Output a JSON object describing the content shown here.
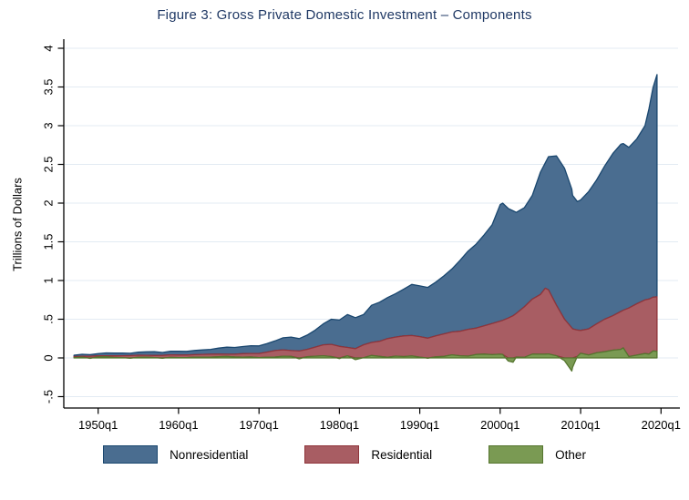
{
  "figure": {
    "title": "Figure 3: Gross Private Domestic Investment – Components",
    "title_color": "#1f3864"
  },
  "chart_data": {
    "type": "area",
    "stacked": true,
    "stack_order_bottom_to_top": [
      "Other",
      "Residential",
      "Nonresidential"
    ],
    "title": "Figure 3: Gross Private Domestic Investment – Components",
    "xlabel": "",
    "ylabel": "Trillions of Dollars",
    "ylim": [
      -0.5,
      4
    ],
    "xlim": [
      1946.97,
      2019.5
    ],
    "grid": true,
    "grid_color": "#e3ebf3",
    "legend_position": "bottom",
    "x_ticks": {
      "values": [
        1950,
        1960,
        1970,
        1980,
        1990,
        2000,
        2010,
        2020
      ],
      "labels": [
        "1950q1",
        "1960q1",
        "1970q1",
        "1980q1",
        "1990q1",
        "2000q1",
        "2010q1",
        "2020q1"
      ]
    },
    "y_ticks": {
      "values": [
        -0.5,
        0,
        0.5,
        1,
        1.5,
        2,
        2.5,
        3,
        3.5,
        4
      ],
      "labels": [
        "-.5",
        "0",
        ".5",
        "1",
        "1.5",
        "2",
        "2.5",
        "3",
        "3.5",
        "4"
      ]
    },
    "x": [
      1947,
      1948,
      1949,
      1950,
      1951,
      1952,
      1953,
      1954,
      1955,
      1956,
      1957,
      1958,
      1959,
      1960,
      1961,
      1962,
      1963,
      1964,
      1965,
      1966,
      1967,
      1968,
      1969,
      1970,
      1971,
      1972,
      1973,
      1974,
      1975,
      1976,
      1977,
      1978,
      1979,
      1980,
      1981,
      1982,
      1983,
      1984,
      1985,
      1986,
      1987,
      1988,
      1989,
      1990,
      1991,
      1992,
      1993,
      1994,
      1995,
      1996,
      1997,
      1998,
      1999,
      2000,
      2000.3,
      2001,
      2001.6,
      2002,
      2003,
      2004,
      2005,
      2005.6,
      2006,
      2007,
      2008,
      2008.9,
      2009,
      2009.6,
      2010,
      2011,
      2012,
      2013,
      2014,
      2015,
      2015.3,
      2016,
      2017,
      2018,
      2018.5,
      2019,
      2019.5
    ],
    "series": [
      {
        "name": "Nonresidential",
        "fill": "#4a6d90",
        "stroke": "#1a476f",
        "values": [
          0.017,
          0.025,
          0.02,
          0.027,
          0.037,
          0.035,
          0.036,
          0.03,
          0.039,
          0.045,
          0.048,
          0.038,
          0.046,
          0.048,
          0.047,
          0.054,
          0.057,
          0.063,
          0.077,
          0.091,
          0.087,
          0.092,
          0.1,
          0.097,
          0.11,
          0.125,
          0.155,
          0.175,
          0.16,
          0.185,
          0.22,
          0.27,
          0.325,
          0.34,
          0.425,
          0.4,
          0.39,
          0.48,
          0.505,
          0.53,
          0.56,
          0.605,
          0.66,
          0.655,
          0.655,
          0.695,
          0.75,
          0.815,
          0.915,
          1.01,
          1.085,
          1.175,
          1.275,
          1.505,
          1.515,
          1.415,
          1.355,
          1.305,
          1.28,
          1.34,
          1.58,
          1.62,
          1.72,
          1.93,
          1.95,
          1.79,
          1.725,
          1.66,
          1.685,
          1.775,
          1.86,
          1.98,
          2.095,
          2.16,
          2.155,
          2.075,
          2.13,
          2.25,
          2.46,
          2.705,
          2.87
        ]
      },
      {
        "name": "Residential",
        "fill": "#a85d63",
        "stroke": "#90353b",
        "values": [
          0.014,
          0.012,
          0.022,
          0.015,
          0.012,
          0.021,
          0.025,
          0.03,
          0.027,
          0.024,
          0.029,
          0.033,
          0.033,
          0.033,
          0.035,
          0.032,
          0.037,
          0.038,
          0.034,
          0.028,
          0.035,
          0.045,
          0.045,
          0.054,
          0.065,
          0.083,
          0.083,
          0.075,
          0.09,
          0.094,
          0.118,
          0.142,
          0.157,
          0.15,
          0.107,
          0.12,
          0.168,
          0.168,
          0.195,
          0.242,
          0.246,
          0.267,
          0.264,
          0.265,
          0.255,
          0.271,
          0.29,
          0.295,
          0.317,
          0.346,
          0.34,
          0.365,
          0.403,
          0.427,
          0.44,
          0.515,
          0.545,
          0.563,
          0.652,
          0.71,
          0.772,
          0.85,
          0.828,
          0.652,
          0.5,
          0.39,
          0.375,
          0.34,
          0.295,
          0.337,
          0.374,
          0.42,
          0.445,
          0.49,
          0.485,
          0.627,
          0.664,
          0.694,
          0.71,
          0.695,
          0.705
        ]
      },
      {
        "name": "Other",
        "fill": "#7a9a53",
        "stroke": "#55752f",
        "values": [
          0.004,
          0.01,
          -0.006,
          0.013,
          0.016,
          0.006,
          0.003,
          -0.003,
          0.008,
          0.01,
          0.003,
          -0.004,
          0.007,
          0.005,
          0.003,
          0.01,
          0.009,
          0.01,
          0.016,
          0.02,
          0.013,
          0.01,
          0.013,
          0.004,
          0.01,
          0.012,
          0.022,
          0.02,
          -0.012,
          0.016,
          0.022,
          0.028,
          0.018,
          -0.008,
          0.028,
          -0.022,
          0.002,
          0.032,
          0.02,
          0.008,
          0.024,
          0.018,
          0.026,
          0.01,
          -0.004,
          0.014,
          0.02,
          0.04,
          0.028,
          0.024,
          0.045,
          0.05,
          0.042,
          0.048,
          0.045,
          -0.04,
          -0.055,
          0.012,
          0.008,
          0.05,
          0.048,
          0.05,
          0.052,
          0.028,
          -0.035,
          -0.17,
          -0.12,
          0.02,
          0.06,
          0.038,
          0.066,
          0.08,
          0.1,
          0.11,
          0.13,
          0.018,
          0.036,
          0.056,
          0.05,
          0.09,
          0.085
        ]
      }
    ]
  }
}
